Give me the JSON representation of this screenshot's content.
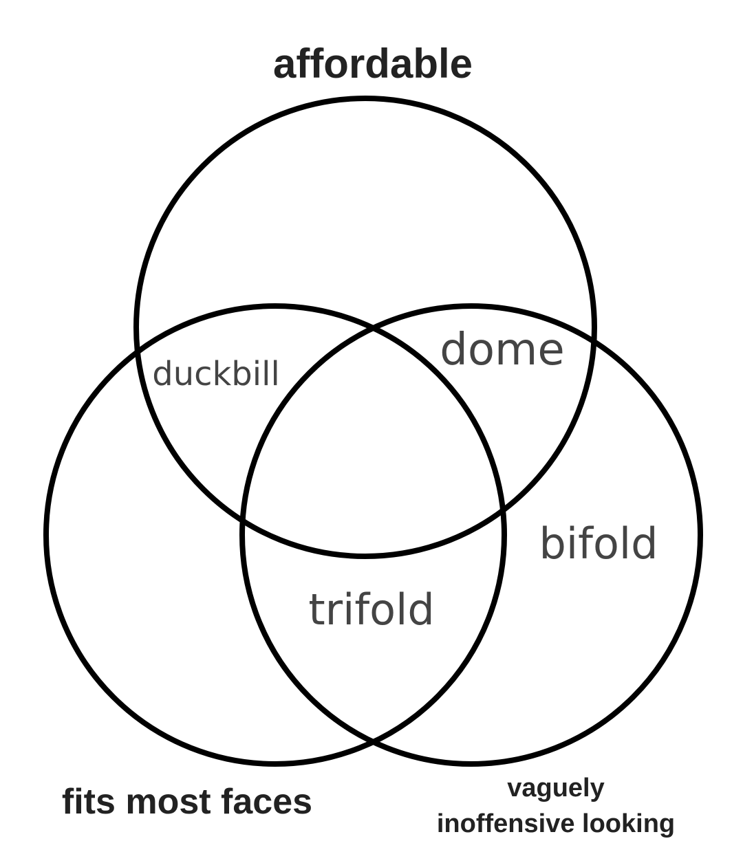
{
  "diagram": {
    "sets": {
      "top": "affordable",
      "left": "fits most faces",
      "right_line1": "vaguely",
      "right_line2": "inoffensive looking"
    },
    "regions": {
      "top_left": "duckbill",
      "top_right": "dome",
      "right_only": "bifold",
      "left_right": "trifold"
    }
  }
}
